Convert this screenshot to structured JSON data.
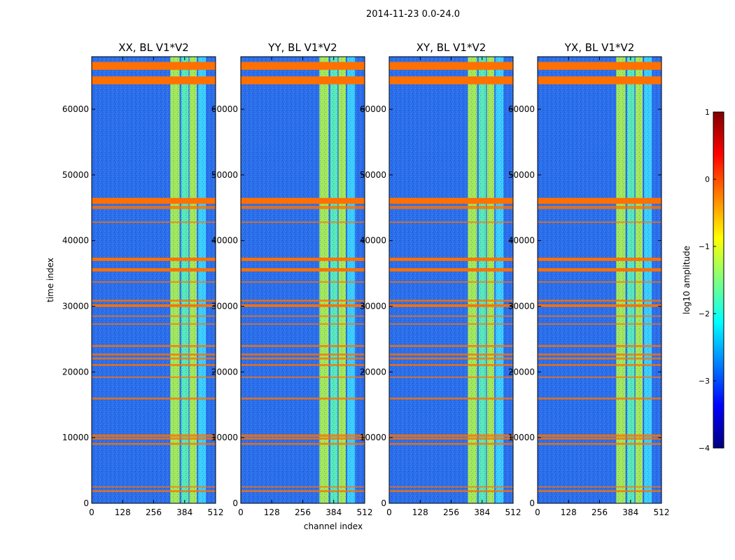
{
  "figure": {
    "suptitle": "2014-11-23 0.0-24.0"
  },
  "chart_data": {
    "type": "heatmap",
    "xlabel": "channel index",
    "ylabel": "time index",
    "xlim": [
      0,
      512
    ],
    "ylim": [
      0,
      68000
    ],
    "xticks": [
      "0",
      "128",
      "256",
      "384",
      "512"
    ],
    "yticks": [
      "0",
      "10000",
      "20000",
      "30000",
      "40000",
      "50000",
      "60000"
    ],
    "panels": [
      {
        "title": "XX, BL V1*V2",
        "id": "xx"
      },
      {
        "title": "YY, BL V1*V2",
        "id": "yy"
      },
      {
        "title": "XY, BL V1*V2",
        "id": "xy"
      },
      {
        "title": "YX, BL V1*V2",
        "id": "yx"
      }
    ],
    "bright_channel_bands": [
      [
        325,
        363
      ],
      [
        370,
        400
      ],
      [
        404,
        434
      ],
      [
        440,
        472
      ]
    ],
    "flagged_time_rows": [
      {
        "t0": 66000,
        "t1": 67200,
        "thick": true
      },
      {
        "t0": 63800,
        "t1": 65000,
        "thick": true
      },
      {
        "t0": 45600,
        "t1": 46500,
        "thick": true
      },
      {
        "t0": 44800,
        "t1": 45300,
        "thick": false
      },
      {
        "t0": 42700,
        "t1": 42900,
        "thick": false
      },
      {
        "t0": 36900,
        "t1": 37400,
        "thick": true
      },
      {
        "t0": 35300,
        "t1": 35800,
        "thick": true
      },
      {
        "t0": 33600,
        "t1": 33800,
        "thick": false
      },
      {
        "t0": 30700,
        "t1": 31000,
        "thick": false
      },
      {
        "t0": 29900,
        "t1": 30300,
        "thick": true
      },
      {
        "t0": 28400,
        "t1": 28600,
        "thick": false
      },
      {
        "t0": 27200,
        "t1": 27400,
        "thick": false
      },
      {
        "t0": 23800,
        "t1": 24100,
        "thick": false
      },
      {
        "t0": 22500,
        "t1": 22800,
        "thick": false
      },
      {
        "t0": 21900,
        "t1": 22200,
        "thick": false
      },
      {
        "t0": 20900,
        "t1": 21200,
        "thick": false
      },
      {
        "t0": 19100,
        "t1": 19300,
        "thick": false
      },
      {
        "t0": 15800,
        "t1": 16100,
        "thick": false
      },
      {
        "t0": 10100,
        "t1": 10500,
        "thick": false
      },
      {
        "t0": 9700,
        "t1": 10000,
        "thick": false
      },
      {
        "t0": 8900,
        "t1": 9200,
        "thick": false
      },
      {
        "t0": 2400,
        "t1": 2600,
        "thick": false
      },
      {
        "t0": 1700,
        "t1": 2000,
        "thick": false
      }
    ],
    "colorbar": {
      "label": "log10 amplitude",
      "min": -4,
      "max": 1,
      "ticks": [
        "1",
        "0",
        "−1",
        "−2",
        "−3",
        "−4"
      ],
      "tick_values": [
        1,
        0,
        -1,
        -2,
        -3,
        -4
      ],
      "colormap": [
        "#00007f",
        "#0000ff",
        "#007fff",
        "#00ffff",
        "#7fff7f",
        "#ffff00",
        "#ff7f00",
        "#ff0000",
        "#7f0000"
      ]
    },
    "colors": {
      "background": "#2c6fe9",
      "flag": "#ff7000",
      "band_a": "#b8ff40",
      "band_b": "#60ffb0",
      "band_c": "#40e0ff"
    }
  }
}
